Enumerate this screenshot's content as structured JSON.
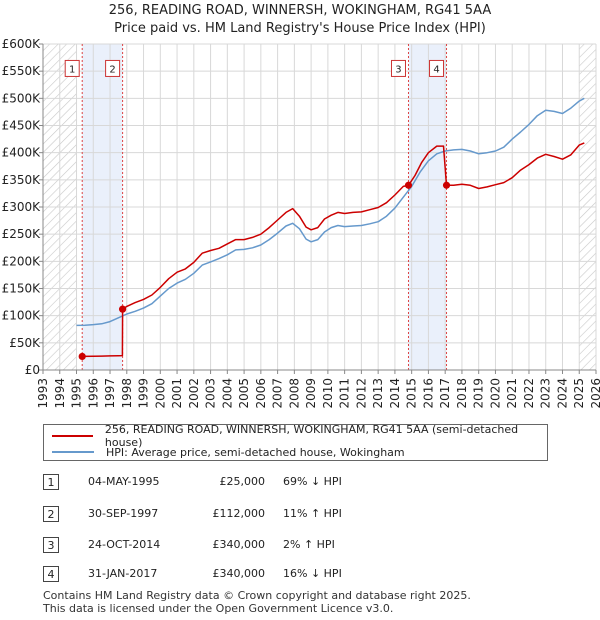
{
  "chart_data": {
    "type": "line",
    "title": "256, READING ROAD, WINNERSH, WOKINGHAM, RG41 5AA",
    "subtitle": "Price paid vs. HM Land Registry's House Price Index (HPI)",
    "xlabel": "",
    "ylabel": "",
    "xlim": [
      1993,
      2026
    ],
    "ylim": [
      0,
      600000
    ],
    "x_ticks": [
      "1993",
      "1994",
      "1995",
      "1996",
      "1997",
      "1998",
      "1999",
      "2000",
      "2001",
      "2002",
      "2003",
      "2004",
      "2005",
      "2006",
      "2007",
      "2008",
      "2009",
      "2010",
      "2011",
      "2012",
      "2013",
      "2014",
      "2015",
      "2016",
      "2017",
      "2018",
      "2019",
      "2020",
      "2021",
      "2022",
      "2023",
      "2024",
      "2025",
      "2026"
    ],
    "y_ticks": [
      {
        "value": 0,
        "label": "£0"
      },
      {
        "value": 50000,
        "label": "£50K"
      },
      {
        "value": 100000,
        "label": "£100K"
      },
      {
        "value": 150000,
        "label": "£150K"
      },
      {
        "value": 200000,
        "label": "£200K"
      },
      {
        "value": 250000,
        "label": "£250K"
      },
      {
        "value": 300000,
        "label": "£300K"
      },
      {
        "value": 350000,
        "label": "£350K"
      },
      {
        "value": 400000,
        "label": "£400K"
      },
      {
        "value": 450000,
        "label": "£450K"
      },
      {
        "value": 500000,
        "label": "£500K"
      },
      {
        "value": 550000,
        "label": "£550K"
      },
      {
        "value": 600000,
        "label": "£600K"
      }
    ],
    "grid": true,
    "hatched_before": 1995.0,
    "hatched_after": 2025.0,
    "shaded_periods": [
      [
        1995.34,
        1997.75
      ],
      [
        2014.81,
        2017.08
      ]
    ],
    "series": [
      {
        "name": "256, READING ROAD, WINNERSH, WOKINGHAM, RG41 5AA (semi-detached house)",
        "color": "#cc0000",
        "points": [
          [
            1995.34,
            25000
          ],
          [
            1996.0,
            25200
          ],
          [
            1996.5,
            25500
          ],
          [
            1997.0,
            25900
          ],
          [
            1997.5,
            26300
          ],
          [
            1997.74,
            26500
          ],
          [
            1997.75,
            112000
          ],
          [
            1998.0,
            117000
          ],
          [
            1998.5,
            124000
          ],
          [
            1999.0,
            130000
          ],
          [
            1999.5,
            138000
          ],
          [
            2000.0,
            152000
          ],
          [
            2000.5,
            168000
          ],
          [
            2001.0,
            180000
          ],
          [
            2001.5,
            186000
          ],
          [
            2002.0,
            198000
          ],
          [
            2002.5,
            215000
          ],
          [
            2003.0,
            220000
          ],
          [
            2003.5,
            224000
          ],
          [
            2004.0,
            232000
          ],
          [
            2004.5,
            240000
          ],
          [
            2005.0,
            240000
          ],
          [
            2005.5,
            244000
          ],
          [
            2006.0,
            250000
          ],
          [
            2006.5,
            262000
          ],
          [
            2007.0,
            276000
          ],
          [
            2007.5,
            290000
          ],
          [
            2007.9,
            297000
          ],
          [
            2008.3,
            283000
          ],
          [
            2008.7,
            263000
          ],
          [
            2009.0,
            258000
          ],
          [
            2009.4,
            262000
          ],
          [
            2009.8,
            278000
          ],
          [
            2010.2,
            285000
          ],
          [
            2010.6,
            290000
          ],
          [
            2011.0,
            288000
          ],
          [
            2011.5,
            290000
          ],
          [
            2012.0,
            291000
          ],
          [
            2012.5,
            295000
          ],
          [
            2013.0,
            299000
          ],
          [
            2013.5,
            308000
          ],
          [
            2014.0,
            322000
          ],
          [
            2014.5,
            338000
          ],
          [
            2014.81,
            340000
          ],
          [
            2015.2,
            358000
          ],
          [
            2015.6,
            382000
          ],
          [
            2016.0,
            400000
          ],
          [
            2016.5,
            412000
          ],
          [
            2016.9,
            412000
          ],
          [
            2017.08,
            340000
          ],
          [
            2017.5,
            340000
          ],
          [
            2018.0,
            342000
          ],
          [
            2018.5,
            340000
          ],
          [
            2019.0,
            334000
          ],
          [
            2019.5,
            337000
          ],
          [
            2020.0,
            341000
          ],
          [
            2020.5,
            345000
          ],
          [
            2021.0,
            354000
          ],
          [
            2021.5,
            368000
          ],
          [
            2022.0,
            378000
          ],
          [
            2022.5,
            390000
          ],
          [
            2023.0,
            397000
          ],
          [
            2023.5,
            393000
          ],
          [
            2024.0,
            388000
          ],
          [
            2024.5,
            396000
          ],
          [
            2025.0,
            414000
          ],
          [
            2025.3,
            418000
          ]
        ]
      },
      {
        "name": "HPI: Average price, semi-detached house, Wokingham",
        "color": "#6699cc",
        "points": [
          [
            1995.0,
            82000
          ],
          [
            1995.5,
            82500
          ],
          [
            1996.0,
            83500
          ],
          [
            1996.5,
            85000
          ],
          [
            1997.0,
            89000
          ],
          [
            1997.5,
            96000
          ],
          [
            1998.0,
            103000
          ],
          [
            1998.5,
            108000
          ],
          [
            1999.0,
            114000
          ],
          [
            1999.5,
            122000
          ],
          [
            2000.0,
            136000
          ],
          [
            2000.5,
            150000
          ],
          [
            2001.0,
            160000
          ],
          [
            2001.5,
            167000
          ],
          [
            2002.0,
            178000
          ],
          [
            2002.5,
            193000
          ],
          [
            2003.0,
            199000
          ],
          [
            2003.5,
            205000
          ],
          [
            2004.0,
            212000
          ],
          [
            2004.5,
            221000
          ],
          [
            2005.0,
            222000
          ],
          [
            2005.5,
            225000
          ],
          [
            2006.0,
            230000
          ],
          [
            2006.5,
            240000
          ],
          [
            2007.0,
            252000
          ],
          [
            2007.5,
            265000
          ],
          [
            2007.9,
            270000
          ],
          [
            2008.3,
            260000
          ],
          [
            2008.7,
            241000
          ],
          [
            2009.0,
            236000
          ],
          [
            2009.4,
            240000
          ],
          [
            2009.8,
            254000
          ],
          [
            2010.2,
            262000
          ],
          [
            2010.6,
            266000
          ],
          [
            2011.0,
            264000
          ],
          [
            2011.5,
            265000
          ],
          [
            2012.0,
            266000
          ],
          [
            2012.5,
            269000
          ],
          [
            2013.0,
            273000
          ],
          [
            2013.5,
            283000
          ],
          [
            2014.0,
            298000
          ],
          [
            2014.5,
            318000
          ],
          [
            2015.0,
            338000
          ],
          [
            2015.5,
            364000
          ],
          [
            2016.0,
            385000
          ],
          [
            2016.5,
            398000
          ],
          [
            2017.0,
            403000
          ],
          [
            2017.5,
            405000
          ],
          [
            2018.0,
            406000
          ],
          [
            2018.5,
            403000
          ],
          [
            2019.0,
            398000
          ],
          [
            2019.5,
            400000
          ],
          [
            2020.0,
            403000
          ],
          [
            2020.5,
            410000
          ],
          [
            2021.0,
            425000
          ],
          [
            2021.5,
            438000
          ],
          [
            2022.0,
            452000
          ],
          [
            2022.5,
            468000
          ],
          [
            2023.0,
            478000
          ],
          [
            2023.5,
            476000
          ],
          [
            2024.0,
            472000
          ],
          [
            2024.5,
            482000
          ],
          [
            2025.0,
            495000
          ],
          [
            2025.3,
            500000
          ]
        ]
      }
    ],
    "transactions": [
      {
        "num": "1",
        "date": "04-MAY-1995",
        "price": "£25,000",
        "hpi": "69% ↓ HPI",
        "x": 1995.34,
        "value": 25000
      },
      {
        "num": "2",
        "date": "30-SEP-1997",
        "price": "£112,000",
        "hpi": "11% ↑ HPI",
        "x": 1997.75,
        "value": 112000
      },
      {
        "num": "3",
        "date": "24-OCT-2014",
        "price": "£340,000",
        "hpi": "2% ↑ HPI",
        "x": 2014.81,
        "value": 340000
      },
      {
        "num": "4",
        "date": "31-JAN-2017",
        "price": "£340,000",
        "hpi": "16% ↓ HPI",
        "x": 2017.08,
        "value": 340000
      }
    ]
  },
  "legend": {
    "property_label": "256, READING ROAD, WINNERSH, WOKINGHAM, RG41 5AA (semi-detached house)",
    "hpi_label": "HPI: Average price, semi-detached house, Wokingham",
    "property_color": "#cc0000",
    "hpi_color": "#6699cc"
  },
  "footer": {
    "line1": "Contains HM Land Registry data © Crown copyright and database right 2025.",
    "line2": "This data is licensed under the Open Government Licence v3.0."
  }
}
